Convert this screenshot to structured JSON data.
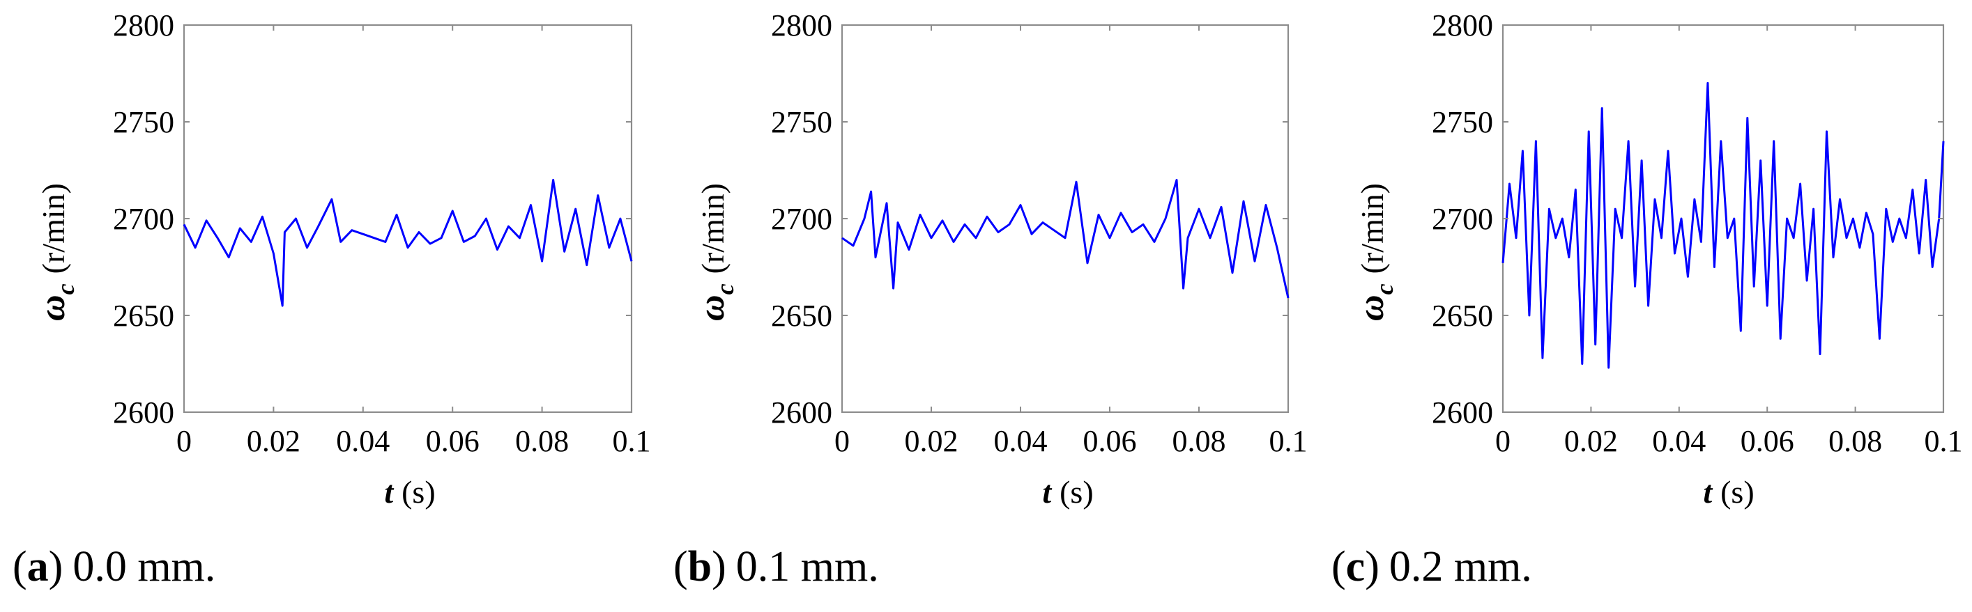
{
  "colors": {
    "series": "#0000ff",
    "axis": "#8c8c8c"
  },
  "chart_data": [
    {
      "type": "line",
      "caption_letter": "a",
      "caption_text": "0.0 mm.",
      "xlabel_symbol": "t",
      "xlabel_unit": "(s)",
      "ylabel_symbol": "ω",
      "ylabel_subscript": "c",
      "ylabel_unit": "(r/min)",
      "xlim": [
        0,
        0.1
      ],
      "ylim": [
        2600,
        2800
      ],
      "xticks": [
        0,
        0.02,
        0.04,
        0.06,
        0.08,
        0.1
      ],
      "xtick_labels": [
        "0",
        "0.02",
        "0.04",
        "0.06",
        "0.08",
        "0.1"
      ],
      "yticks": [
        2600,
        2650,
        2700,
        2750,
        2800
      ],
      "ytick_labels": [
        "2600",
        "2650",
        "2700",
        "2750",
        "2800"
      ],
      "grid": false,
      "series": [
        {
          "x": [
            0,
            0.0025,
            0.005,
            0.0075,
            0.01,
            0.0125,
            0.015,
            0.0175,
            0.02,
            0.022,
            0.0225,
            0.025,
            0.0275,
            0.03,
            0.033,
            0.035,
            0.0375,
            0.04,
            0.0425,
            0.045,
            0.0475,
            0.05,
            0.0525,
            0.055,
            0.0575,
            0.06,
            0.0625,
            0.065,
            0.0675,
            0.07,
            0.0725,
            0.075,
            0.0775,
            0.08,
            0.0825,
            0.085,
            0.0875,
            0.09,
            0.0925,
            0.095,
            0.0975,
            0.1
          ],
          "y": [
            2697,
            2685,
            2699,
            2690,
            2680,
            2695,
            2688,
            2701,
            2682,
            2655,
            2693,
            2700,
            2685,
            2696,
            2710,
            2688,
            2694,
            2692,
            2690,
            2688,
            2702,
            2685,
            2693,
            2687,
            2690,
            2704,
            2688,
            2691,
            2700,
            2684,
            2696,
            2690,
            2707,
            2678,
            2720,
            2683,
            2705,
            2676,
            2712,
            2685,
            2700,
            2678
          ]
        }
      ]
    },
    {
      "type": "line",
      "caption_letter": "b",
      "caption_text": "0.1 mm.",
      "xlabel_symbol": "t",
      "xlabel_unit": "(s)",
      "ylabel_symbol": "ω",
      "ylabel_subscript": "c",
      "ylabel_unit": "(r/min)",
      "xlim": [
        0,
        0.1
      ],
      "ylim": [
        2600,
        2800
      ],
      "xticks": [
        0,
        0.02,
        0.04,
        0.06,
        0.08,
        0.1
      ],
      "xtick_labels": [
        "0",
        "0.02",
        "0.04",
        "0.06",
        "0.08",
        "0.1"
      ],
      "yticks": [
        2600,
        2650,
        2700,
        2750,
        2800
      ],
      "ytick_labels": [
        "2600",
        "2650",
        "2700",
        "2750",
        "2800"
      ],
      "grid": false,
      "series": [
        {
          "x": [
            0,
            0.0025,
            0.005,
            0.0065,
            0.0075,
            0.01,
            0.0115,
            0.0125,
            0.015,
            0.0175,
            0.02,
            0.0225,
            0.025,
            0.0275,
            0.03,
            0.0325,
            0.035,
            0.0375,
            0.04,
            0.0425,
            0.045,
            0.0475,
            0.05,
            0.0525,
            0.055,
            0.0575,
            0.06,
            0.0625,
            0.065,
            0.0675,
            0.07,
            0.0725,
            0.075,
            0.0765,
            0.0775,
            0.08,
            0.0825,
            0.085,
            0.0875,
            0.09,
            0.0925,
            0.095,
            0.0975,
            0.1
          ],
          "y": [
            2690,
            2686,
            2700,
            2714,
            2680,
            2708,
            2664,
            2698,
            2684,
            2702,
            2690,
            2699,
            2688,
            2697,
            2690,
            2701,
            2693,
            2697,
            2707,
            2692,
            2698,
            2694,
            2690,
            2719,
            2677,
            2702,
            2690,
            2703,
            2693,
            2697,
            2688,
            2700,
            2720,
            2664,
            2690,
            2705,
            2690,
            2706,
            2672,
            2709,
            2678,
            2707,
            2685,
            2659
          ]
        }
      ]
    },
    {
      "type": "line",
      "caption_letter": "c",
      "caption_text": "0.2 mm.",
      "xlabel_symbol": "t",
      "xlabel_unit": "(s)",
      "ylabel_symbol": "ω",
      "ylabel_subscript": "c",
      "ylabel_unit": "(r/min)",
      "xlim": [
        0,
        0.1
      ],
      "ylim": [
        2600,
        2800
      ],
      "xticks": [
        0,
        0.02,
        0.04,
        0.06,
        0.08,
        0.1
      ],
      "xtick_labels": [
        "0",
        "0.02",
        "0.04",
        "0.06",
        "0.08",
        "0.1"
      ],
      "yticks": [
        2600,
        2650,
        2700,
        2750,
        2800
      ],
      "ytick_labels": [
        "2600",
        "2650",
        "2700",
        "2750",
        "2800"
      ],
      "grid": false,
      "series": [
        {
          "x": [
            0,
            0.0015,
            0.003,
            0.0045,
            0.006,
            0.0075,
            0.009,
            0.0105,
            0.012,
            0.0135,
            0.015,
            0.0165,
            0.018,
            0.0195,
            0.021,
            0.0225,
            0.024,
            0.0255,
            0.027,
            0.0285,
            0.03,
            0.0315,
            0.033,
            0.0345,
            0.036,
            0.0375,
            0.039,
            0.0405,
            0.042,
            0.0435,
            0.045,
            0.0465,
            0.048,
            0.0495,
            0.051,
            0.0525,
            0.054,
            0.0555,
            0.057,
            0.0585,
            0.06,
            0.0615,
            0.063,
            0.0645,
            0.066,
            0.0675,
            0.069,
            0.0705,
            0.072,
            0.0735,
            0.075,
            0.0765,
            0.078,
            0.0795,
            0.081,
            0.0825,
            0.084,
            0.0855,
            0.087,
            0.0885,
            0.09,
            0.0915,
            0.093,
            0.0945,
            0.096,
            0.0975,
            0.099,
            0.1
          ],
          "y": [
            2677,
            2718,
            2690,
            2735,
            2650,
            2740,
            2628,
            2705,
            2690,
            2700,
            2680,
            2715,
            2625,
            2745,
            2635,
            2757,
            2623,
            2705,
            2690,
            2740,
            2665,
            2730,
            2655,
            2710,
            2690,
            2735,
            2682,
            2700,
            2670,
            2710,
            2688,
            2770,
            2675,
            2740,
            2690,
            2700,
            2642,
            2752,
            2665,
            2730,
            2655,
            2740,
            2638,
            2700,
            2690,
            2718,
            2668,
            2705,
            2630,
            2745,
            2680,
            2710,
            2690,
            2700,
            2685,
            2703,
            2692,
            2638,
            2705,
            2688,
            2700,
            2690,
            2715,
            2682,
            2720,
            2675,
            2700,
            2740
          ]
        }
      ]
    }
  ]
}
